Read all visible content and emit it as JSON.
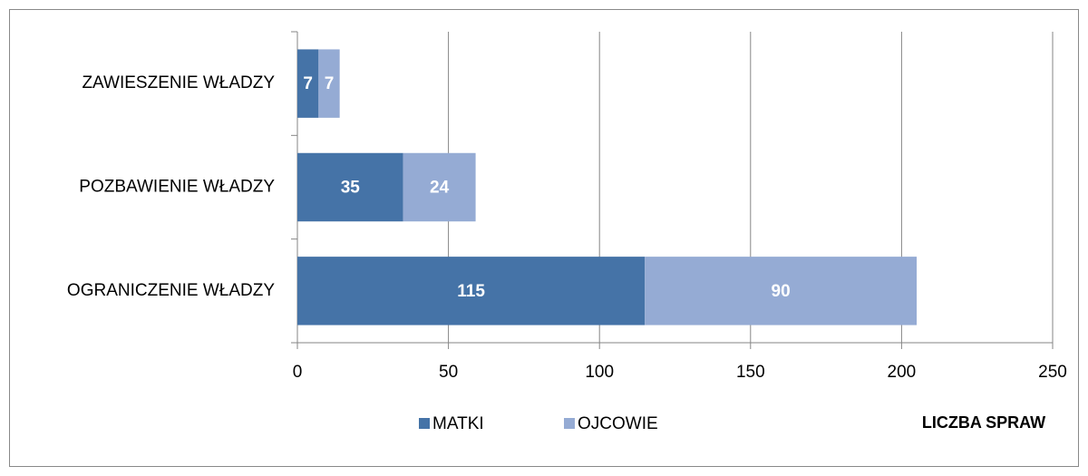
{
  "chart_data": {
    "type": "stacked_bar_horizontal",
    "categories": [
      "ZAWIESZENIE WŁADZY",
      "POZBAWIENIE WŁADZY",
      "OGRANICZENIE WŁADZY"
    ],
    "series": [
      {
        "name": "MATKI",
        "color": "#4573a7",
        "values": [
          7,
          35,
          115
        ]
      },
      {
        "name": "OJCOWIE",
        "color": "#95abd4",
        "values": [
          7,
          24,
          90
        ]
      }
    ],
    "xlim": [
      0,
      250
    ],
    "xticks": [
      0,
      50,
      100,
      150,
      200,
      250
    ],
    "xlabel": "LICZBA SPRAW",
    "grid": true,
    "legend": "bottom"
  }
}
